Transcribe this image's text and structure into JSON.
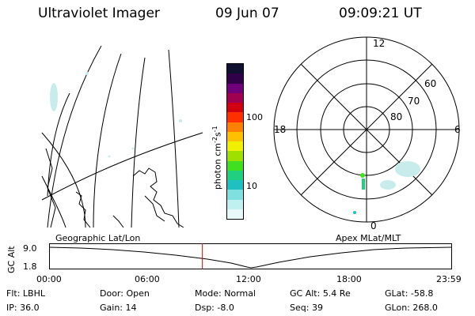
{
  "header": {
    "title": "Ultraviolet Imager",
    "date": "09 Jun 07",
    "time": "09:09:21 UT"
  },
  "colorbar": {
    "label": "photon cm-2s-1",
    "unit_main": "photon cm",
    "sup1": "-2",
    "unit_s": "s",
    "sup2": "-1",
    "ticks": [
      "100",
      "10"
    ],
    "colors": [
      "#101030",
      "#300048",
      "#70007a",
      "#a00050",
      "#d00010",
      "#ff3000",
      "#ff8000",
      "#ffc000",
      "#f0f000",
      "#a0e000",
      "#40e020",
      "#20d080",
      "#20c0c0",
      "#80e0e0",
      "#c0f0f0",
      "#e8f8f8"
    ]
  },
  "polar_plot": {
    "mlt_labels": {
      "top": "12",
      "right": "6",
      "bottom": "0",
      "left": "18"
    },
    "lat_labels": [
      "60",
      "70",
      "80"
    ]
  },
  "panel_labels": {
    "left": "Geographic Lat/Lon",
    "right": "Apex MLat/MLT"
  },
  "altitude_plot": {
    "ylabel": "GC Alt",
    "yticks": [
      "9.0",
      "1.8"
    ],
    "xticks": [
      "00:00",
      "06:00",
      "12:00",
      "18:00",
      "23:59"
    ],
    "marker_time": "09:09"
  },
  "info": {
    "row1": [
      {
        "label": "Flt:",
        "value": "LBHL"
      },
      {
        "label": "Door:",
        "value": "Open"
      },
      {
        "label": "Mode:",
        "value": "Normal"
      },
      {
        "label": "GC Alt:",
        "value": "5.4 Re"
      },
      {
        "label": "GLat:",
        "value": "-58.8"
      }
    ],
    "row2": [
      {
        "label": "IP:",
        "value": "36.0"
      },
      {
        "label": "Gain:",
        "value": "14"
      },
      {
        "label": "Dsp:",
        "value": "-8.0"
      },
      {
        "label": "Seq:",
        "value": "39"
      },
      {
        "label": "GLon:",
        "value": "268.0"
      }
    ]
  }
}
